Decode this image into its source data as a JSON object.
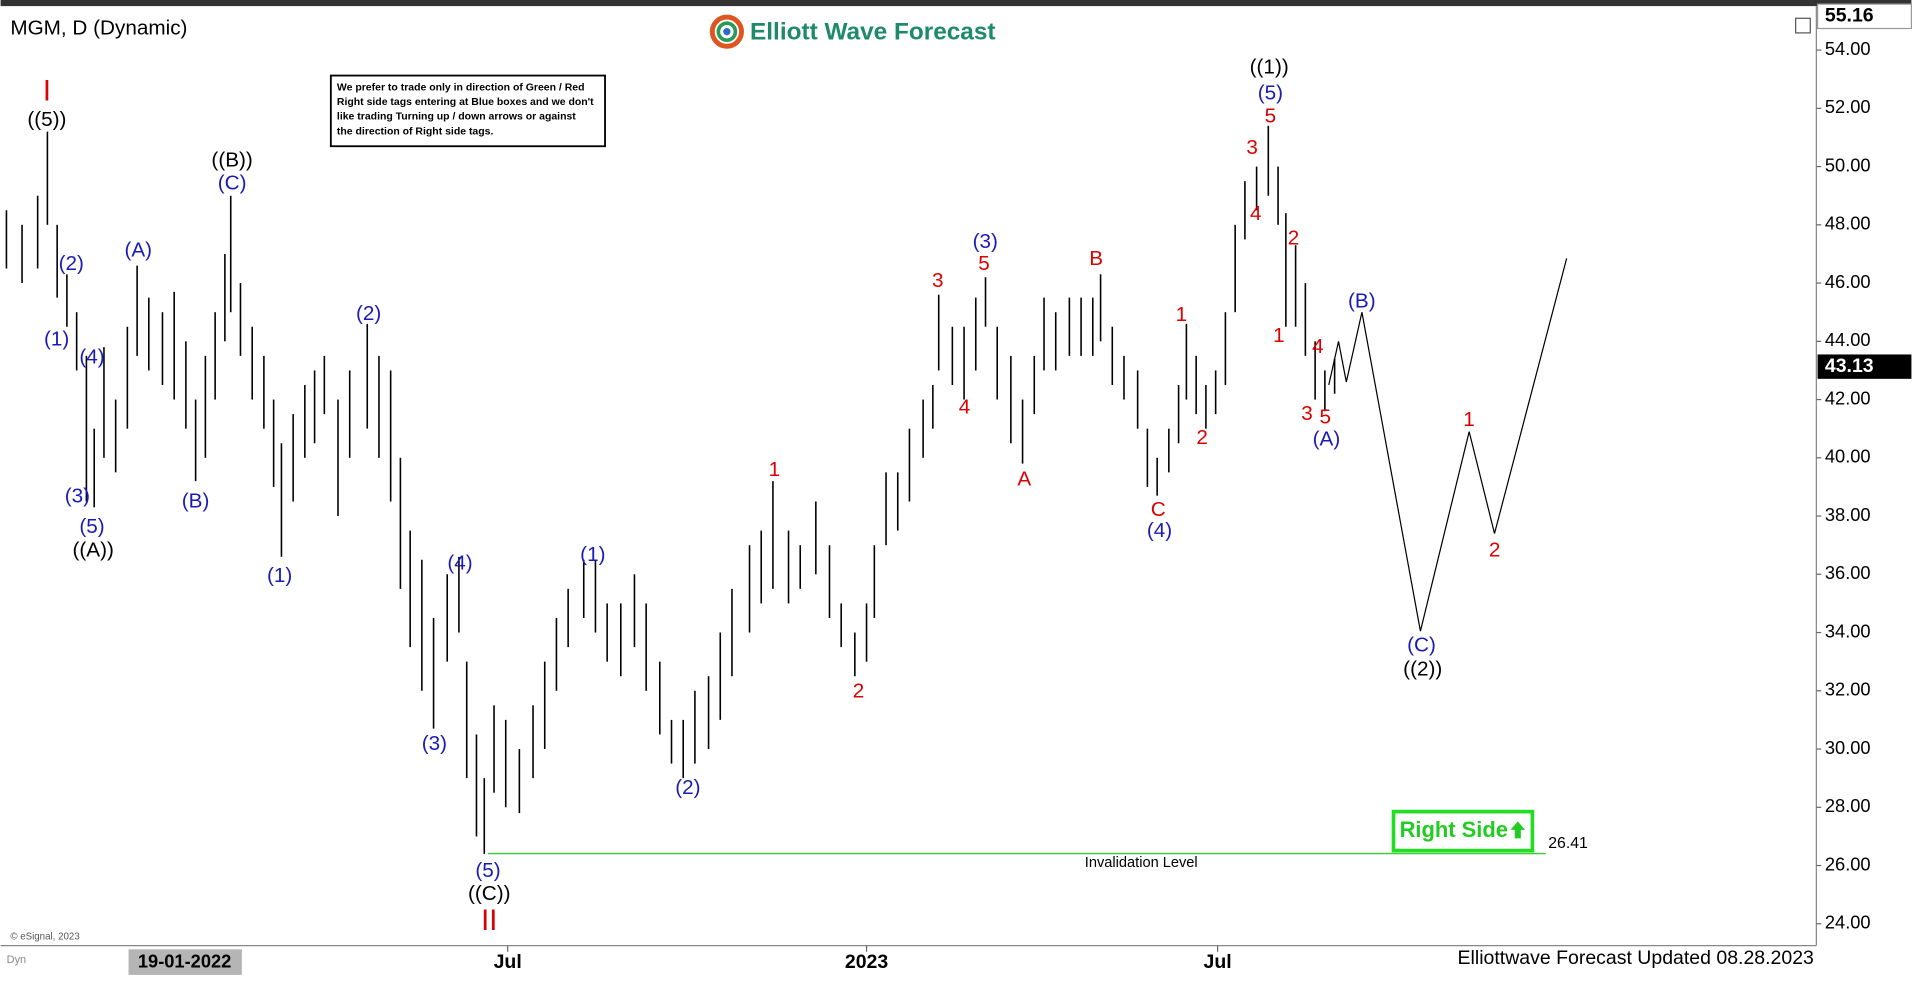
{
  "chart_data": {
    "type": "hilo",
    "title": "MGM, D (Dynamic)",
    "logo": "Elliott Wave Forecast",
    "note": [
      "We prefer to trade only in direction of Green / Red",
      "Right side tags entering at Blue boxes and we don't",
      "like trading Turning up / down arrows or against",
      "the direction of Right side tags."
    ],
    "footer": "Elliottwave Forecast Updated 08.28.2023",
    "copyright": "© eSignal, 2023",
    "corner_tag": "Dyn",
    "cursor_date": "19-01-2022",
    "cursor_price": 55.16,
    "last_price": 43.13,
    "right_side": "Right Side",
    "invalidation": {
      "value": 26.41,
      "label": "Invalidation Level",
      "color": "#33cc33"
    },
    "bar_color": "#000000",
    "xlim": [
      0,
      931
    ],
    "xticks": [
      {
        "value": 260,
        "label": "Jul"
      },
      {
        "value": 444,
        "label": "2023"
      },
      {
        "value": 624,
        "label": "Jul"
      }
    ],
    "ylim": [
      23.29,
      55.72
    ],
    "yticks": [
      {
        "value": 24,
        "label": "24.00"
      },
      {
        "value": 26,
        "label": "26.00"
      },
      {
        "value": 28,
        "label": "28.00"
      },
      {
        "value": 30,
        "label": "30.00"
      },
      {
        "value": 32,
        "label": "32.00"
      },
      {
        "value": 34,
        "label": "34.00"
      },
      {
        "value": 36,
        "label": "36.00"
      },
      {
        "value": 38,
        "label": "38.00"
      },
      {
        "value": 40,
        "label": "40.00"
      },
      {
        "value": 42,
        "label": "42.00"
      },
      {
        "value": 44,
        "label": "44.00"
      },
      {
        "value": 46,
        "label": "46.00"
      },
      {
        "value": 48,
        "label": "48.00"
      },
      {
        "value": 50,
        "label": "50.00"
      },
      {
        "value": 52,
        "label": "52.00"
      },
      {
        "value": 54,
        "label": "54.00"
      }
    ],
    "x": [
      3,
      11,
      19,
      24,
      29,
      34,
      39,
      44,
      48,
      53,
      59,
      65,
      70,
      76,
      83,
      89,
      95,
      100,
      105,
      110,
      115,
      118,
      123,
      129,
      135,
      140,
      144,
      150,
      156,
      161,
      166,
      173,
      179,
      188,
      194,
      200,
      205,
      210,
      216,
      222,
      229,
      235,
      239,
      244,
      248,
      253,
      259,
      266,
      273,
      279,
      285,
      291,
      299,
      305,
      311,
      318,
      325,
      331,
      338,
      344,
      350,
      356,
      363,
      369,
      375,
      384,
      390,
      396,
      404,
      410,
      418,
      425,
      431,
      438,
      444,
      448,
      454,
      460,
      466,
      473,
      478,
      481,
      488,
      494,
      500,
      505,
      511,
      518,
      524,
      530,
      535,
      541,
      548,
      554,
      560,
      564,
      570,
      576,
      583,
      588,
      593,
      599,
      604,
      608,
      613,
      618,
      623,
      628,
      633,
      638,
      644,
      650,
      655,
      659,
      664,
      669,
      674,
      679,
      684
    ],
    "high": [
      48.5,
      48,
      49,
      51.2,
      48,
      46.3,
      45,
      43.5,
      41,
      43.8,
      42,
      44.5,
      46.6,
      45.5,
      45,
      45.7,
      44,
      42,
      43.5,
      45,
      47,
      49,
      46,
      44.5,
      43.5,
      42,
      40.5,
      41.5,
      42.5,
      43,
      43.5,
      42,
      43,
      44.6,
      43.5,
      43,
      40,
      37.5,
      36.5,
      34.5,
      36,
      36.6,
      33,
      30.5,
      29,
      31.5,
      31,
      30,
      31.5,
      33,
      34.5,
      35.5,
      36.5,
      36.5,
      35,
      35,
      36,
      35,
      33,
      31,
      31,
      32,
      32.5,
      34,
      35.5,
      37,
      37.5,
      39.2,
      37.5,
      37,
      38.5,
      37,
      35,
      34,
      35,
      37,
      39.5,
      39.5,
      41,
      42,
      42.5,
      45.6,
      44.5,
      44.5,
      45.5,
      46.2,
      44.5,
      43.5,
      42,
      43.5,
      45.5,
      45,
      45.5,
      45.5,
      45.5,
      46.3,
      44.5,
      43.5,
      43,
      41,
      40,
      41,
      42.5,
      44.6,
      43.5,
      42.5,
      43,
      45,
      48,
      49.5,
      50,
      51.4,
      50,
      48.4,
      47.3,
      46,
      44,
      43,
      43.4
    ],
    "low": [
      46.5,
      46,
      46.5,
      48,
      45.5,
      44.5,
      43,
      38.5,
      38.3,
      40,
      39.5,
      41,
      43.5,
      43,
      42.5,
      42,
      41,
      39.2,
      40,
      42,
      44,
      45,
      43.5,
      42,
      41,
      39,
      36.6,
      38.5,
      40,
      40.5,
      41.5,
      38,
      40,
      41,
      40,
      38.5,
      35.5,
      33.5,
      32,
      30.7,
      33,
      34,
      29,
      27,
      26.4,
      28.5,
      28,
      27.8,
      29,
      30,
      32,
      33.5,
      34.5,
      34,
      33,
      32.5,
      33.5,
      32,
      30.5,
      29.5,
      29,
      29.5,
      30,
      31,
      32.5,
      34,
      35,
      35.5,
      35,
      35.5,
      36,
      34.5,
      33.5,
      32.5,
      33,
      34.5,
      37,
      37.5,
      38.5,
      40,
      41,
      43,
      42.5,
      42,
      43,
      44.5,
      42,
      40.5,
      39.8,
      41.5,
      43,
      43,
      43.5,
      43.5,
      43.5,
      44,
      42.5,
      42,
      41,
      39,
      38.7,
      39.5,
      40.5,
      42,
      41.5,
      41,
      41.5,
      42.5,
      45,
      47.5,
      48.5,
      49,
      48,
      44.5,
      44.5,
      43.5,
      42,
      41.6,
      42.2
    ],
    "projection": {
      "color": "#000000",
      "x": [
        681,
        686,
        690,
        698,
        728,
        753,
        766,
        803
      ],
      "values": [
        42.5,
        44,
        42.6,
        45,
        34.05,
        40.9,
        37.4,
        46.85
      ]
    },
    "annotations": [
      {
        "text": "I",
        "color": "#dd0000"
      },
      {
        "text": "((5))",
        "color": "#000000"
      },
      {
        "text": "(2)",
        "color": "#1a1ab8"
      },
      {
        "text": "(1)",
        "color": "#1a1ab8"
      },
      {
        "text": "(4)",
        "color": "#1a1ab8"
      },
      {
        "text": "(3)",
        "color": "#1a1ab8"
      },
      {
        "text": "(5)",
        "color": "#1a1ab8"
      },
      {
        "text": "((A))",
        "color": "#000000"
      },
      {
        "text": "(A)",
        "color": "#1a1ab8"
      },
      {
        "text": "(B)",
        "color": "#1a1ab8"
      },
      {
        "text": "((B))",
        "color": "#000000"
      },
      {
        "text": "(C)",
        "color": "#1a1ab8"
      },
      {
        "text": "(1)",
        "color": "#1a1ab8"
      },
      {
        "text": "(2)",
        "color": "#1a1ab8"
      },
      {
        "text": "(4)",
        "color": "#1a1ab8"
      },
      {
        "text": "(3)",
        "color": "#1a1ab8"
      },
      {
        "text": "(5)",
        "color": "#1a1ab8"
      },
      {
        "text": "((C))",
        "color": "#000000"
      },
      {
        "text": "II",
        "color": "#dd0000"
      },
      {
        "text": "(1)",
        "color": "#1a1ab8"
      },
      {
        "text": "(2)",
        "color": "#1a1ab8"
      },
      {
        "text": "1",
        "color": "#dd0000"
      },
      {
        "text": "2",
        "color": "#dd0000"
      },
      {
        "text": "3",
        "color": "#dd0000"
      },
      {
        "text": "(3)",
        "color": "#1a1ab8"
      },
      {
        "text": "5",
        "color": "#dd0000"
      },
      {
        "text": "4",
        "color": "#dd0000"
      },
      {
        "text": "A",
        "color": "#dd0000"
      },
      {
        "text": "B",
        "color": "#dd0000"
      },
      {
        "text": "C",
        "color": "#dd0000"
      },
      {
        "text": "(4)",
        "color": "#1a1ab8"
      },
      {
        "text": "1",
        "color": "#dd0000"
      },
      {
        "text": "2",
        "color": "#dd0000"
      },
      {
        "text": "3",
        "color": "#dd0000"
      },
      {
        "text": "5",
        "color": "#dd0000"
      },
      {
        "text": "(5)",
        "color": "#1a1ab8"
      },
      {
        "text": "((1))",
        "color": "#000000"
      },
      {
        "text": "4",
        "color": "#dd0000"
      },
      {
        "text": "2",
        "color": "#dd0000"
      },
      {
        "text": "1",
        "color": "#dd0000"
      },
      {
        "text": "4",
        "color": "#dd0000"
      },
      {
        "text": "3",
        "color": "#dd0000"
      },
      {
        "text": "5",
        "color": "#dd0000"
      },
      {
        "text": "(A)",
        "color": "#1a1ab8"
      },
      {
        "text": "(B)",
        "color": "#1a1ab8"
      },
      {
        "text": "1",
        "color": "#dd0000"
      },
      {
        "text": "2",
        "color": "#dd0000"
      },
      {
        "text": "(C)",
        "color": "#1a1ab8"
      },
      {
        "text": "((2))",
        "color": "#000000"
      }
    ]
  }
}
